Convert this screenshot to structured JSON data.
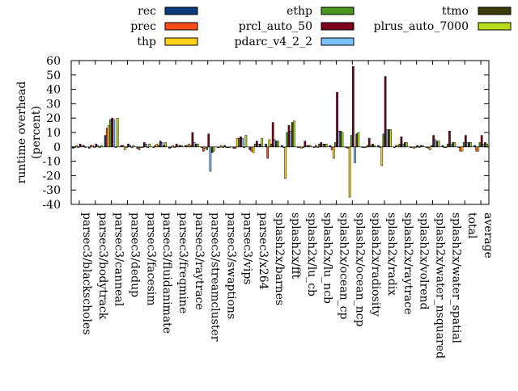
{
  "chart_data": {
    "type": "bar",
    "ylabel": "runtime overhead\n(percent)",
    "xlabel": "",
    "ylim": [
      -40,
      60
    ],
    "yticks": [
      -40,
      -30,
      -20,
      -10,
      0,
      10,
      20,
      30,
      40,
      50,
      60
    ],
    "legend_placement": "top",
    "grid": false,
    "categories": [
      "parsec3/blackscholes",
      "parsec3/bodytrack",
      "parsec3/canneal",
      "parsec3/dedup",
      "parsec3/facesim",
      "parsec3/fluidanimate",
      "parsec3/freqmine",
      "parsec3/raytrace",
      "parsec3/streamcluster",
      "parsec3/swaptions",
      "parsec3/vips",
      "parsec3/x264",
      "splash2x/barnes",
      "splash2x/fft",
      "splash2x/lu_cb",
      "splash2x/lu_ncb",
      "splash2x/ocean_cp",
      "splash2x/ocean_ncp",
      "splash2x/radiosity",
      "splash2x/radix",
      "splash2x/raytrace",
      "splash2x/volrend",
      "splash2x/water_nsquared",
      "splash2x/water_spatial",
      "total",
      "average"
    ],
    "series": [
      {
        "name": "rec",
        "color": "#0b3c7d",
        "values": [
          -1,
          -1,
          8,
          1,
          -1,
          0,
          -1,
          1,
          0,
          0,
          -1,
          -2,
          2,
          1,
          0,
          0,
          1,
          0,
          0,
          1,
          0,
          0,
          0,
          1,
          0,
          1
        ]
      },
      {
        "name": "prec",
        "color": "#ff4a1c",
        "values": [
          0,
          1,
          13,
          1,
          -2,
          1,
          0,
          1,
          -3,
          0,
          -1,
          -3,
          -8,
          0,
          0,
          1,
          -2,
          -1,
          0,
          0,
          1,
          0,
          -1,
          0,
          -3,
          -3
        ]
      },
      {
        "name": "thp",
        "color": "#ffd31c",
        "values": [
          1,
          1,
          15,
          -2,
          0,
          2,
          1,
          2,
          -1,
          1,
          6,
          -4,
          5,
          -22,
          -1,
          0,
          -8,
          -35,
          0,
          -13,
          1,
          -1,
          -2,
          0,
          -3,
          -3
        ]
      },
      {
        "name": "ethp",
        "color": "#4a9420",
        "values": [
          0,
          0,
          19,
          0,
          0,
          1,
          0,
          1,
          -2,
          0,
          6,
          2,
          2,
          10,
          0,
          2,
          3,
          8,
          1,
          9,
          2,
          0,
          1,
          2,
          3,
          3
        ]
      },
      {
        "name": "prcl_auto_50",
        "color": "#7d001c",
        "values": [
          2,
          2,
          20,
          2,
          3,
          4,
          2,
          10,
          9,
          1,
          7,
          4,
          17,
          15,
          4,
          3,
          38,
          56,
          6,
          49,
          7,
          1,
          8,
          11,
          8,
          8
        ]
      },
      {
        "name": "pdarc_v4_2_2",
        "color": "#7cc1ff",
        "values": [
          1,
          1,
          19,
          1,
          2,
          3,
          1,
          3,
          -17,
          0,
          6,
          2,
          5,
          11,
          1,
          2,
          11,
          -11,
          1,
          12,
          2,
          0,
          5,
          2,
          3,
          2
        ]
      },
      {
        "name": "ttmo",
        "color": "#3c3c0b",
        "values": [
          1,
          0,
          0,
          0,
          0,
          1,
          1,
          2,
          -4,
          0,
          0,
          2,
          4,
          17,
          1,
          2,
          11,
          9,
          2,
          12,
          3,
          1,
          4,
          3,
          3,
          3
        ]
      },
      {
        "name": "plrus_auto_7000",
        "color": "#b8dc1c",
        "values": [
          0,
          1,
          20,
          1,
          2,
          3,
          1,
          2,
          -3,
          0,
          8,
          6,
          4,
          18,
          1,
          2,
          10,
          10,
          1,
          12,
          3,
          1,
          4,
          3,
          3,
          2
        ]
      }
    ]
  }
}
